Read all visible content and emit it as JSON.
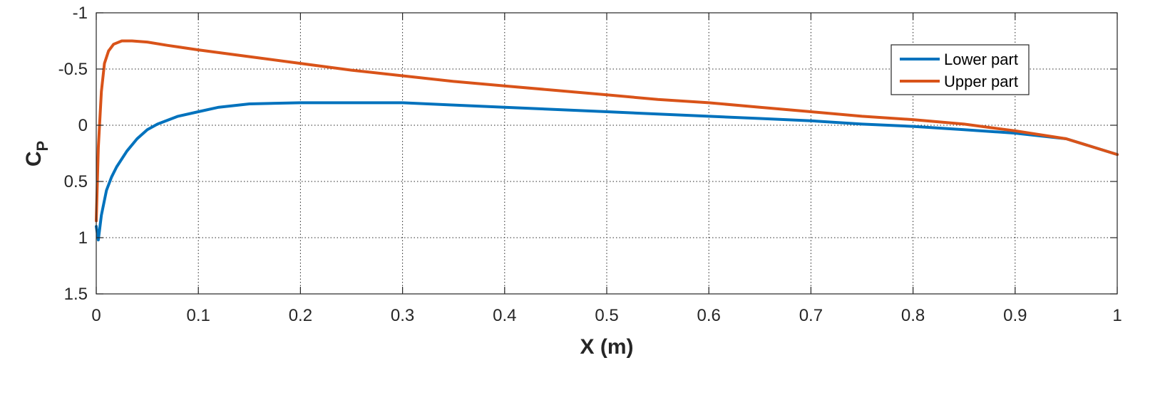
{
  "chart_data": {
    "type": "line",
    "xlabel": "X (m)",
    "ylabel_main": "C",
    "ylabel_sub": "P",
    "xlim": [
      0,
      1
    ],
    "ylim": [
      -1,
      1.5
    ],
    "y_reversed": true,
    "grid": true,
    "legend_position": "top-right",
    "xticks": [
      0,
      0.1,
      0.2,
      0.3,
      0.4,
      0.5,
      0.6,
      0.7,
      0.8,
      0.9,
      1
    ],
    "xtick_labels": [
      "0",
      "0.1",
      "0.2",
      "0.3",
      "0.4",
      "0.5",
      "0.6",
      "0.7",
      "0.8",
      "0.9",
      "1"
    ],
    "yticks": [
      -1,
      -0.5,
      0,
      0.5,
      1,
      1.5
    ],
    "ytick_labels": [
      "-1",
      "-0.5",
      "0",
      "0.5",
      "1",
      "1.5"
    ],
    "series": [
      {
        "name": "Lower part",
        "color": "#0072BD",
        "x": [
          0,
          0.002,
          0.005,
          0.01,
          0.015,
          0.02,
          0.03,
          0.04,
          0.05,
          0.06,
          0.08,
          0.1,
          0.12,
          0.15,
          0.2,
          0.25,
          0.3,
          0.35,
          0.4,
          0.45,
          0.5,
          0.55,
          0.6,
          0.65,
          0.7,
          0.75,
          0.8,
          0.85,
          0.9,
          0.95,
          1
        ],
        "y": [
          0.9,
          1.02,
          0.8,
          0.58,
          0.46,
          0.37,
          0.23,
          0.12,
          0.04,
          -0.01,
          -0.08,
          -0.12,
          -0.16,
          -0.19,
          -0.2,
          -0.2,
          -0.2,
          -0.18,
          -0.16,
          -0.14,
          -0.12,
          -0.1,
          -0.08,
          -0.06,
          -0.04,
          -0.01,
          0.01,
          0.04,
          0.07,
          0.12,
          0.26
        ]
      },
      {
        "name": "Upper part",
        "color": "#D95319",
        "x": [
          0,
          0.002,
          0.005,
          0.008,
          0.012,
          0.017,
          0.025,
          0.035,
          0.05,
          0.07,
          0.1,
          0.15,
          0.2,
          0.25,
          0.3,
          0.35,
          0.4,
          0.45,
          0.5,
          0.55,
          0.6,
          0.65,
          0.7,
          0.75,
          0.8,
          0.85,
          0.9,
          0.95,
          1
        ],
        "y": [
          0.85,
          0.2,
          -0.3,
          -0.55,
          -0.66,
          -0.72,
          -0.75,
          -0.75,
          -0.74,
          -0.71,
          -0.67,
          -0.61,
          -0.55,
          -0.49,
          -0.44,
          -0.39,
          -0.35,
          -0.31,
          -0.27,
          -0.23,
          -0.2,
          -0.16,
          -0.12,
          -0.08,
          -0.05,
          -0.01,
          0.05,
          0.12,
          0.26
        ]
      }
    ]
  }
}
